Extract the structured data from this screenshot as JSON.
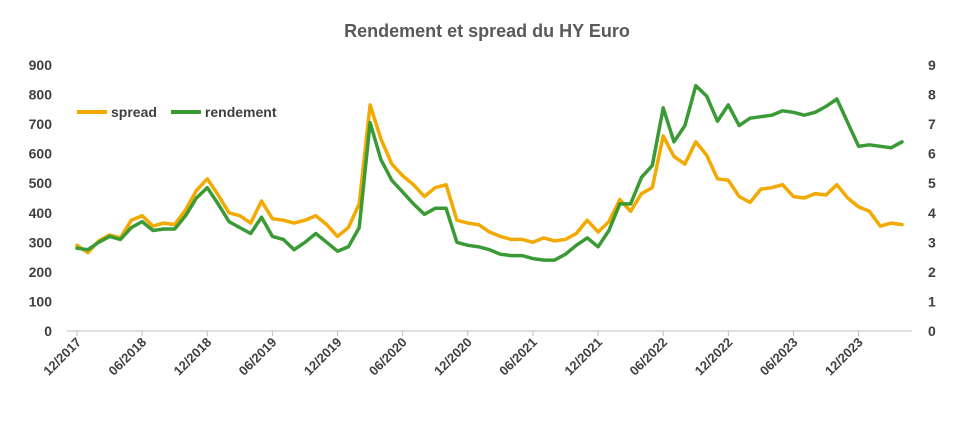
{
  "chart_data": {
    "type": "line",
    "title": "Rendement et spread du HY Euro",
    "xlabel": "",
    "ylabel": "",
    "ylabel_right": "",
    "x_tick_labels": [
      "12/2017",
      "06/2018",
      "12/2018",
      "06/2019",
      "12/2019",
      "06/2020",
      "12/2020",
      "06/2021",
      "12/2021",
      "06/2022",
      "12/2022",
      "06/2023",
      "12/2023"
    ],
    "x_start": "12/2017",
    "x_end": "04/2024",
    "ylim_left": [
      0,
      900
    ],
    "ylim_right": [
      0,
      9
    ],
    "yticks_left": [
      "0",
      "100",
      "200",
      "300",
      "400",
      "500",
      "600",
      "700",
      "800",
      "900"
    ],
    "yticks_right": [
      "0",
      "1",
      "2",
      "3",
      "4",
      "5",
      "6",
      "7",
      "8",
      "9"
    ],
    "grid": false,
    "legend_position": "top-left",
    "series": [
      {
        "name": "spread",
        "axis": "left",
        "color": "#F2A900",
        "values": [
          290,
          265,
          305,
          325,
          315,
          375,
          390,
          355,
          365,
          360,
          410,
          475,
          515,
          460,
          400,
          390,
          365,
          440,
          380,
          375,
          365,
          375,
          390,
          360,
          320,
          350,
          430,
          765,
          650,
          565,
          525,
          495,
          455,
          485,
          495,
          375,
          365,
          360,
          335,
          320,
          310,
          310,
          300,
          315,
          305,
          310,
          330,
          375,
          335,
          370,
          445,
          405,
          465,
          485,
          660,
          590,
          565,
          640,
          595,
          515,
          510,
          455,
          435,
          480,
          485,
          495,
          455,
          450,
          465,
          460,
          495,
          450,
          420,
          405,
          355,
          365,
          360
        ],
        "x_start": "12/2017"
      },
      {
        "name": "rendement",
        "axis": "right",
        "color": "#3A9A35",
        "values": [
          2.8,
          2.75,
          3.0,
          3.2,
          3.1,
          3.5,
          3.7,
          3.4,
          3.45,
          3.45,
          3.9,
          4.5,
          4.85,
          4.3,
          3.7,
          3.5,
          3.3,
          3.85,
          3.2,
          3.1,
          2.75,
          3.0,
          3.3,
          3.0,
          2.7,
          2.85,
          3.5,
          7.05,
          5.8,
          5.1,
          4.7,
          4.3,
          3.95,
          4.15,
          4.15,
          3.0,
          2.9,
          2.85,
          2.75,
          2.6,
          2.55,
          2.55,
          2.45,
          2.4,
          2.4,
          2.6,
          2.9,
          3.15,
          2.85,
          3.4,
          4.3,
          4.3,
          5.2,
          5.6,
          7.55,
          6.4,
          6.95,
          8.3,
          7.95,
          7.1,
          7.65,
          6.95,
          7.2,
          7.25,
          7.3,
          7.45,
          7.4,
          7.3,
          7.4,
          7.6,
          7.85,
          7.05,
          6.25,
          6.3,
          6.25,
          6.2,
          6.4
        ],
        "x_start": "12/2017"
      }
    ]
  }
}
